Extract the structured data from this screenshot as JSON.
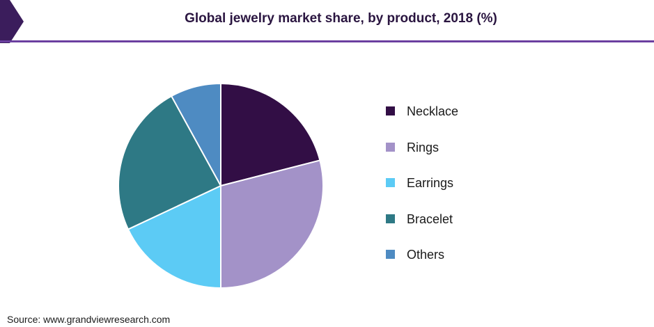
{
  "header": {
    "title": "Global jewelry market share, by product, 2018 (%)",
    "accent_color": "#3b1d5c",
    "rule_color": "#6b3fa0"
  },
  "chart_data": {
    "type": "pie",
    "title": "Global jewelry market share, by product, 2018 (%)",
    "slices": [
      {
        "label": "Necklace",
        "value": 21,
        "color": "#320e45"
      },
      {
        "label": "Rings",
        "value": 29,
        "color": "#a392c8"
      },
      {
        "label": "Earrings",
        "value": 18,
        "color": "#5ccbf5"
      },
      {
        "label": "Bracelet",
        "value": 24,
        "color": "#2e7985"
      },
      {
        "label": "Others",
        "value": 8,
        "color": "#4e8bc2"
      }
    ],
    "legend_position": "right",
    "start": "top",
    "direction": "clockwise"
  },
  "footer": {
    "source": "Source: www.grandviewresearch.com"
  }
}
